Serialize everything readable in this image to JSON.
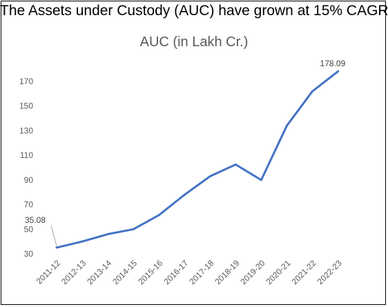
{
  "heading": "The Assets under Custody (AUC) have grown at 15% CAGR",
  "chart_data": {
    "type": "line",
    "title": "AUC (in Lakh Cr.)",
    "xlabel": "",
    "ylabel": "",
    "categories": [
      "2011-12",
      "2012-13",
      "2013-14",
      "2014-15",
      "2015-16",
      "2016-17",
      "2017-18",
      "2018-19",
      "2019-20",
      "2020-21",
      "2021-22",
      "2022-23"
    ],
    "series": [
      {
        "values": [
          35.08,
          40,
          46,
          50,
          61.5,
          78,
          93,
          102.5,
          90,
          134,
          162,
          178.09
        ],
        "color": "#4472C4"
      }
    ],
    "yticks": [
      30,
      50,
      70,
      90,
      110,
      130,
      150,
      170
    ],
    "ylim": [
      30,
      178.09
    ],
    "data_labels": [
      {
        "index": 0,
        "text": "35.08"
      },
      {
        "index": 11,
        "text": "178.09"
      }
    ],
    "grid": false,
    "legend": "none"
  }
}
